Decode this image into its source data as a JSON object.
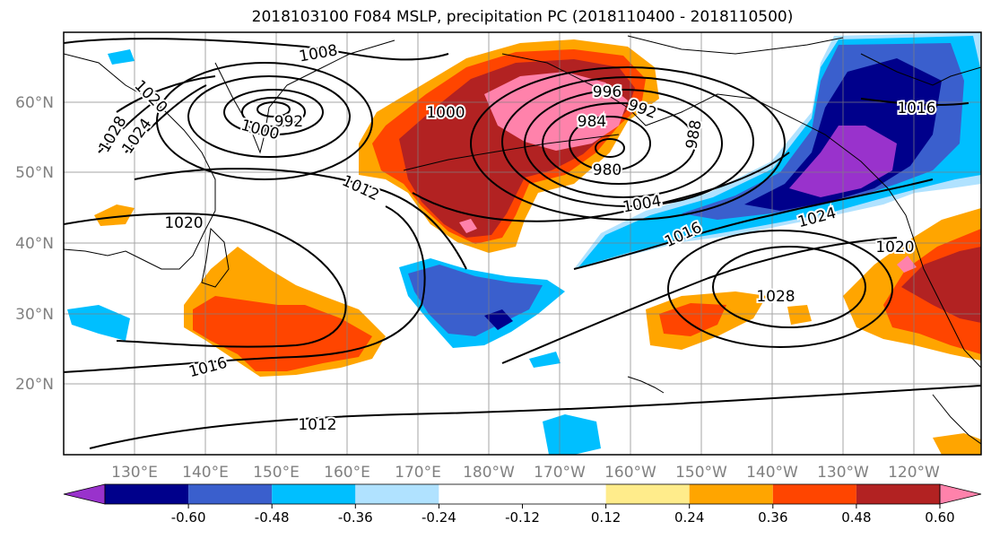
{
  "title": "2018103100 F084 MSLP, precipitation PC (2018110400 - 2018110500)",
  "lat_labels": [
    "60°N",
    "50°N",
    "40°N",
    "30°N",
    "20°N"
  ],
  "lon_labels": [
    "130°E",
    "140°E",
    "150°E",
    "160°E",
    "170°E",
    "180°W",
    "170°W",
    "160°W",
    "150°W",
    "140°W",
    "130°W",
    "120°W"
  ],
  "isobar_labels": [
    "1008",
    "1020",
    "1028",
    "1024",
    "992",
    "1000",
    "1000",
    "996",
    "992",
    "984",
    "988",
    "980",
    "1012",
    "1004",
    "1016",
    "1024",
    "1016",
    "1020",
    "1020",
    "1028",
    "1016",
    "1012"
  ],
  "colorbar": {
    "colors": [
      "#9932cc",
      "#00008b",
      "#3a5fcd",
      "#00bfff",
      "#b0e2ff",
      "#ffffff",
      "#ffffff",
      "#ffec8b",
      "#ffa500",
      "#ff4500",
      "#b22222",
      "#ff82ab"
    ],
    "tick_labels": [
      "-0.60",
      "-0.48",
      "-0.36",
      "-0.24",
      "-0.12",
      "0.12",
      "0.24",
      "0.36",
      "0.48",
      "0.60"
    ]
  },
  "colors": {
    "contour": "#000000",
    "grid": "#808080",
    "axis_text": "#808080"
  }
}
